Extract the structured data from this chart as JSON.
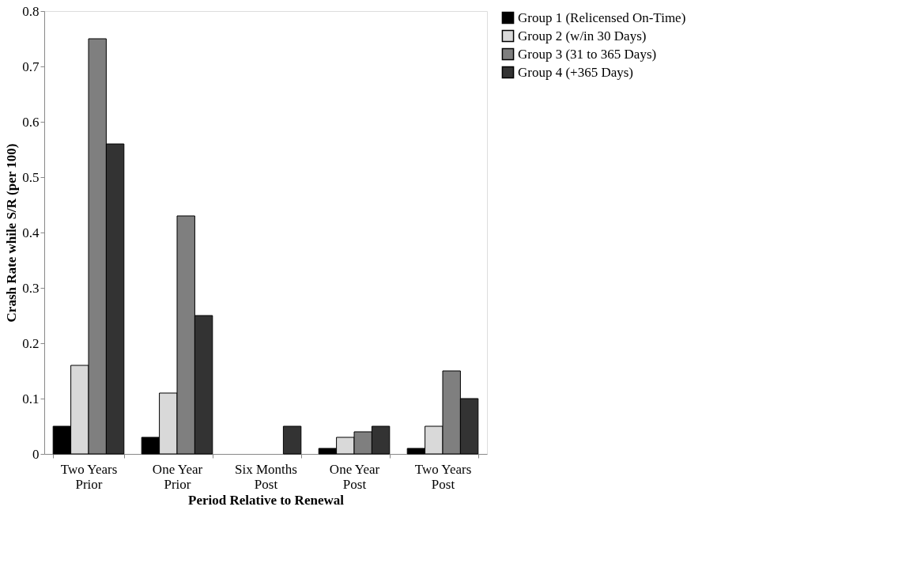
{
  "chart_data": {
    "type": "bar",
    "xlabel": "Period Relative to Renewal",
    "ylabel": "Crash Rate while S/R (per 100)",
    "categories": [
      "Two Years\nPrior",
      "One Year\nPrior",
      "Six Months\nPost",
      "One Year\nPost",
      "Two Years\nPost"
    ],
    "series": [
      {
        "name": "Group 1 (Relicensed On-Time)",
        "color": "#000000",
        "values": [
          0.05,
          0.03,
          0,
          0.01,
          0.01
        ]
      },
      {
        "name": "Group 2 (w/in 30 Days)",
        "color": "#d9d9d9",
        "values": [
          0.16,
          0.11,
          0,
          0.03,
          0.05
        ]
      },
      {
        "name": "Group 3 (31 to 365 Days)",
        "color": "#7f7f7f",
        "values": [
          0.75,
          0.43,
          0,
          0.04,
          0.15
        ]
      },
      {
        "name": "Group 4 (+365 Days)",
        "color": "#333333",
        "values": [
          0.56,
          0.25,
          0.05,
          0.05,
          0.1
        ]
      }
    ],
    "ylim": [
      0,
      0.8
    ],
    "yticks": [
      0,
      0.1,
      0.2,
      0.3,
      0.4,
      0.5,
      0.6,
      0.7,
      0.8
    ],
    "grid": false,
    "legend": "right"
  }
}
